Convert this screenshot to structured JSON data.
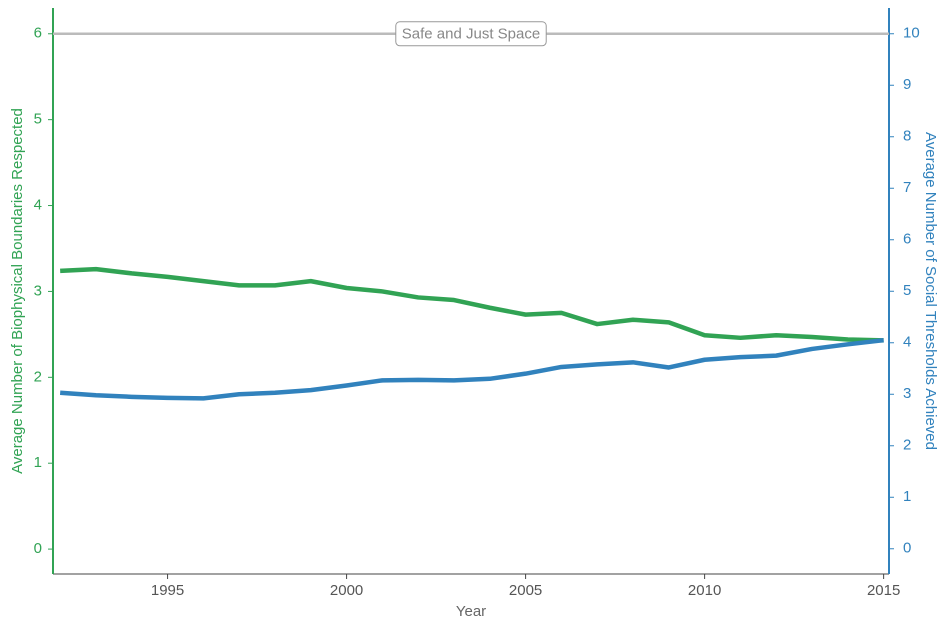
{
  "chart_data": {
    "type": "line",
    "x_label": "Year",
    "y_label": "Average Number of Biophysical Boundaries Respected",
    "y2_label": "Average Number of Social Thresholds Achieved",
    "x": [
      1992,
      1993,
      1994,
      1995,
      1996,
      1997,
      1998,
      1999,
      2000,
      2001,
      2002,
      2003,
      2004,
      2005,
      2006,
      2007,
      2008,
      2009,
      2010,
      2011,
      2012,
      2013,
      2014,
      2015
    ],
    "series": [
      {
        "color": "#31a354",
        "values": [
          3.24,
          3.26,
          3.21,
          3.17,
          3.12,
          3.07,
          3.07,
          3.12,
          3.04,
          3.0,
          2.93,
          2.9,
          2.81,
          2.73,
          2.75,
          2.62,
          2.67,
          2.64,
          2.49,
          2.46,
          2.49,
          2.47,
          2.44,
          2.43
        ]
      },
      {
        "color": "#3182bd",
        "axis": "y2",
        "values": [
          3.03,
          2.98,
          2.95,
          2.93,
          2.92,
          3.0,
          3.03,
          3.08,
          3.17,
          3.27,
          3.28,
          3.27,
          3.3,
          3.4,
          3.53,
          3.58,
          3.62,
          3.52,
          3.67,
          3.72,
          3.75,
          3.88,
          3.97,
          4.05
        ]
      }
    ],
    "annotation": {
      "text": "Safe and Just Space",
      "y": 6
    },
    "xlim": [
      1991.8,
      2015.15
    ],
    "xticks": [
      1995,
      2000,
      2005,
      2010,
      2015
    ],
    "ylim": [
      -0.29,
      6.3
    ],
    "yticks": [
      0,
      1,
      2,
      3,
      4,
      5,
      6
    ],
    "y2lim": [
      -0.49,
      10.5
    ],
    "y2ticks": [
      0,
      1,
      2,
      3,
      4,
      5,
      6,
      7,
      8,
      9,
      10
    ]
  }
}
